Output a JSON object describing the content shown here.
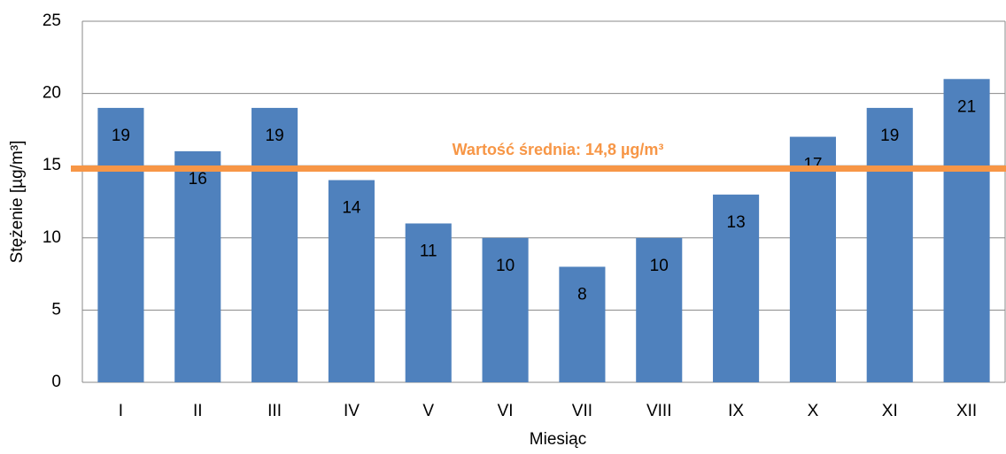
{
  "chart_data": {
    "type": "bar",
    "categories": [
      "I",
      "II",
      "III",
      "IV",
      "V",
      "VI",
      "VII",
      "VIII",
      "IX",
      "X",
      "XI",
      "XII"
    ],
    "values": [
      19,
      16,
      19,
      14,
      11,
      10,
      8,
      10,
      13,
      17,
      19,
      21
    ],
    "color": "#4f81bd",
    "ylim": [
      0,
      25
    ],
    "yticks": [
      0,
      5,
      10,
      15,
      20,
      25
    ],
    "grid": true,
    "x_label": "Miesiąc",
    "y_label": "Stężenie [µg/m³]",
    "mean_line": {
      "value": 14.8,
      "label": "Wartość średnia: 14,8 µg/m³",
      "color": "#f79646"
    }
  }
}
